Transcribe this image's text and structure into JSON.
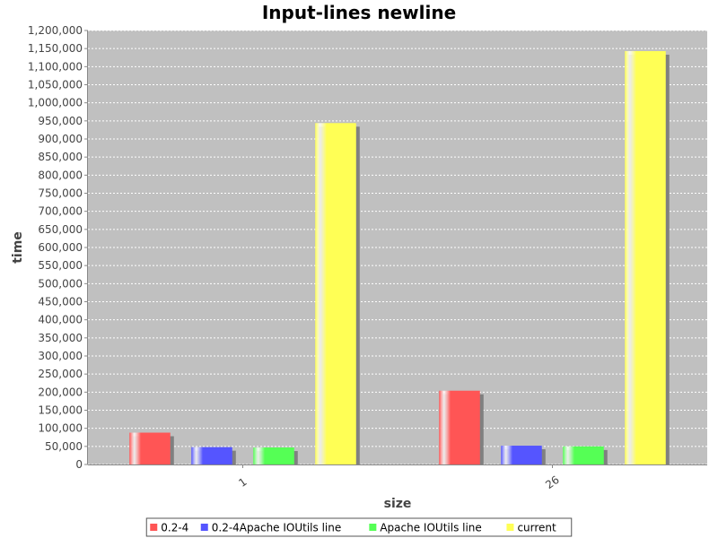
{
  "chart_data": {
    "type": "bar",
    "title": "Input-lines newline",
    "xlabel": "size",
    "ylabel": "time",
    "categories": [
      "1",
      "26"
    ],
    "series": [
      {
        "name": "0.2-4",
        "color": "#ff5555",
        "values": [
          88000,
          204000
        ]
      },
      {
        "name": "0.2-4Apache IOUtils line",
        "color": "#5555ff",
        "values": [
          48000,
          52000
        ]
      },
      {
        "name": "Apache IOUtils line",
        "color": "#55ff55",
        "values": [
          47000,
          50000
        ]
      },
      {
        "name": "current",
        "color": "#ffff55",
        "values": [
          944000,
          1143000
        ]
      }
    ],
    "ylim": [
      0,
      1200000
    ],
    "ytick_step": 50000,
    "grid": true,
    "legend_position": "bottom",
    "plot_background": "#c0c0c0"
  }
}
